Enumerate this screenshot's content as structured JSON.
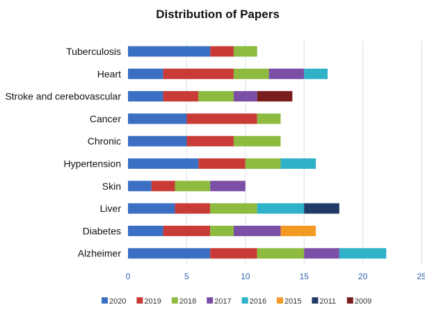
{
  "chart_data": {
    "type": "bar",
    "orientation": "horizontal",
    "stacked": true,
    "title": "Distribution of Papers",
    "xlabel": "",
    "ylabel": "",
    "xlim": [
      0,
      25
    ],
    "x_ticks": [
      "0",
      "5",
      "10",
      "15",
      "20",
      "25"
    ],
    "grid": "vertical gridlines",
    "legend_position": "bottom",
    "categories": [
      "Tuberculosis",
      "Heart",
      "Stroke and cerebovascular",
      "Cancer",
      "Chronic",
      "Hypertension",
      "Skin",
      "Liver",
      "Diabetes",
      "Alzheimer"
    ],
    "series": [
      {
        "name": "2020",
        "color": "#3a6fc4",
        "values": [
          7,
          3,
          3,
          5,
          5,
          6,
          2,
          4,
          3,
          7
        ]
      },
      {
        "name": "2019",
        "color": "#c83b36",
        "values": [
          2,
          6,
          3,
          6,
          4,
          4,
          2,
          3,
          4,
          4
        ]
      },
      {
        "name": "2018",
        "color": "#8dbb3f",
        "values": [
          2,
          3,
          3,
          2,
          4,
          3,
          3,
          4,
          2,
          4
        ]
      },
      {
        "name": "2017",
        "color": "#7b4fa6",
        "values": [
          0,
          3,
          2,
          0,
          0,
          0,
          3,
          0,
          4,
          3
        ]
      },
      {
        "name": "2016",
        "color": "#2fb1c8",
        "values": [
          0,
          2,
          0,
          0,
          0,
          3,
          0,
          4,
          0,
          4
        ]
      },
      {
        "name": "2015",
        "color": "#f39a24",
        "values": [
          0,
          0,
          0,
          0,
          0,
          0,
          0,
          0,
          3,
          0
        ]
      },
      {
        "name": "2011",
        "color": "#1f3b66",
        "values": [
          0,
          0,
          0,
          0,
          0,
          0,
          0,
          3,
          0,
          0
        ]
      },
      {
        "name": "2009",
        "color": "#7a1d1d",
        "values": [
          0,
          0,
          3,
          0,
          0,
          0,
          0,
          0,
          0,
          0
        ]
      }
    ]
  }
}
